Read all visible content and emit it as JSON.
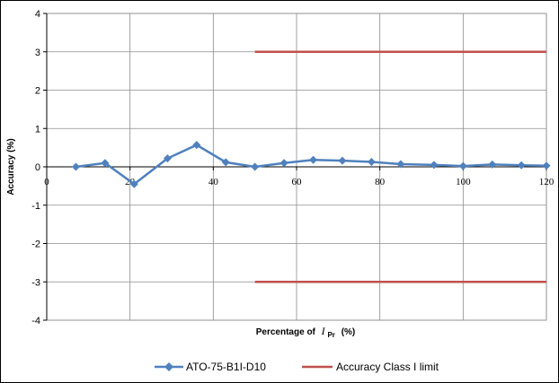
{
  "chart_data": {
    "type": "line",
    "title": "",
    "xlabel": "Percentage of I_Pr (%)",
    "xlabel_parts": {
      "prefix": "Percentage of",
      "symbol": "I",
      "subscript": "Pr",
      "suffix": "(%)"
    },
    "ylabel": "Accuracy (%)",
    "xlim": [
      0,
      120
    ],
    "ylim": [
      -4,
      4
    ],
    "xticks": [
      0,
      20,
      40,
      60,
      80,
      100,
      120
    ],
    "yticks": [
      4,
      3,
      2,
      1,
      0,
      -1,
      -2,
      -3,
      -4
    ],
    "grid": true,
    "legend_position": "bottom",
    "series": [
      {
        "name": "ATO-75-B1I-D10",
        "color": "#4F81BD",
        "marker": "diamond",
        "x": [
          7,
          14,
          21,
          29,
          36,
          43,
          50,
          57,
          64,
          71,
          78,
          85,
          93,
          100,
          107,
          114,
          120
        ],
        "y": [
          0.0,
          0.1,
          -0.45,
          0.22,
          0.57,
          0.12,
          0.0,
          0.1,
          0.18,
          0.16,
          0.13,
          0.07,
          0.05,
          0.02,
          0.06,
          0.04,
          0.03
        ]
      },
      {
        "name": "Accuracy Class I limit",
        "color": "#C0504D",
        "segments": [
          {
            "x": [
              50,
              120
            ],
            "y": [
              3,
              3
            ]
          },
          {
            "x": [
              50,
              120
            ],
            "y": [
              -3,
              -3
            ]
          }
        ]
      }
    ]
  }
}
